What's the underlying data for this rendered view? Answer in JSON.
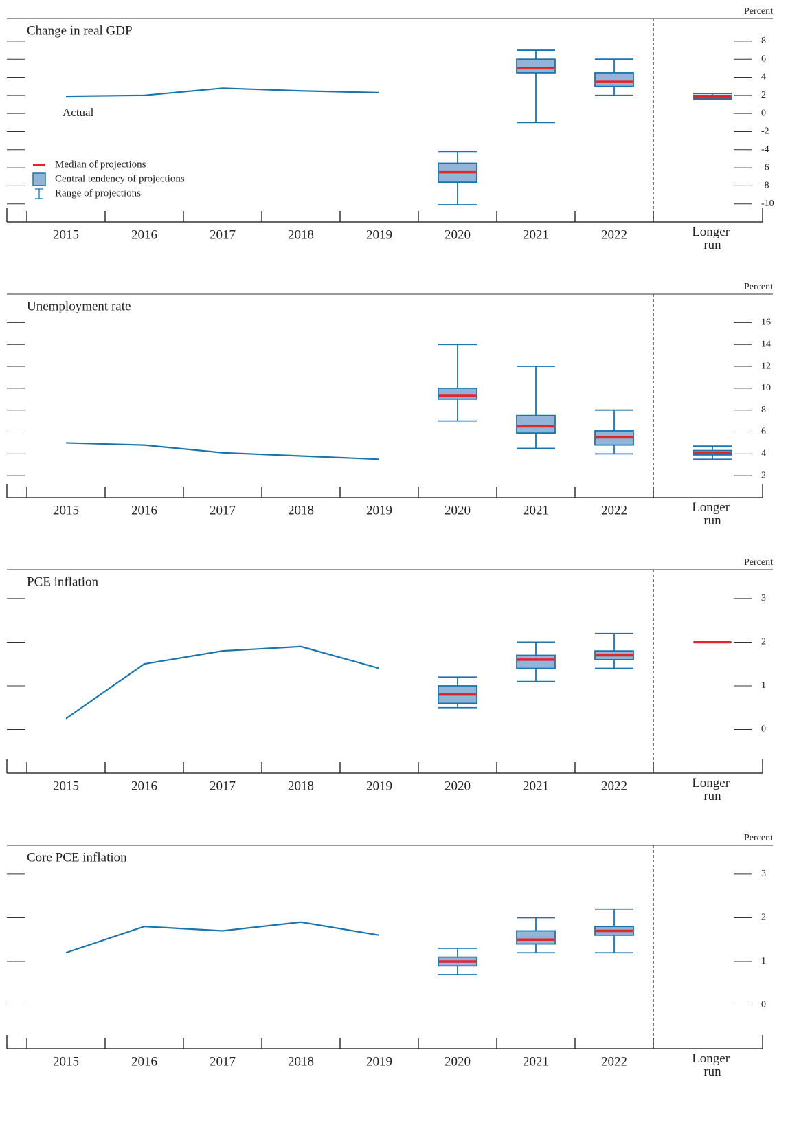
{
  "chart_data": [
    {
      "type": "box",
      "title": "Change in real GDP",
      "y_label": "Percent",
      "annotation": "Actual",
      "legend": {
        "median": "Median of projections",
        "central": "Central tendency of projections",
        "range": "Range of projections"
      },
      "categories": [
        "2015",
        "2016",
        "2017",
        "2018",
        "2019",
        "2020",
        "2021",
        "2022",
        "Longer run"
      ],
      "ylim": [
        -12,
        10.5
      ],
      "yticks": [
        -10,
        -8,
        -6,
        -4,
        -2,
        0,
        2,
        4,
        6,
        8
      ],
      "line_color": "#1b75ad",
      "box_fill": "#92b4d8",
      "median_color": "#e3242b",
      "actual": [
        1.9,
        2.0,
        2.8,
        2.5,
        2.3,
        null,
        null,
        null,
        null
      ],
      "median": [
        null,
        null,
        null,
        null,
        null,
        -6.5,
        5.0,
        3.5,
        1.8
      ],
      "central_low": [
        null,
        null,
        null,
        null,
        null,
        -7.6,
        4.5,
        3.0,
        1.7
      ],
      "central_high": [
        null,
        null,
        null,
        null,
        null,
        -5.5,
        6.0,
        4.5,
        2.0
      ],
      "range_low": [
        null,
        null,
        null,
        null,
        null,
        -10.1,
        -1.0,
        2.0,
        1.6
      ],
      "range_high": [
        null,
        null,
        null,
        null,
        null,
        -4.2,
        7.0,
        6.0,
        2.2
      ]
    },
    {
      "type": "box",
      "title": "Unemployment rate",
      "y_label": "Percent",
      "categories": [
        "2015",
        "2016",
        "2017",
        "2018",
        "2019",
        "2020",
        "2021",
        "2022",
        "Longer run"
      ],
      "ylim": [
        0,
        18.6
      ],
      "yticks": [
        2,
        4,
        6,
        8,
        10,
        12,
        14,
        16
      ],
      "line_color": "#1b75ad",
      "box_fill": "#92b4d8",
      "median_color": "#e3242b",
      "actual": [
        5.0,
        4.8,
        4.1,
        3.8,
        3.5,
        null,
        null,
        null,
        null
      ],
      "median": [
        null,
        null,
        null,
        null,
        null,
        9.3,
        6.5,
        5.5,
        4.1
      ],
      "central_low": [
        null,
        null,
        null,
        null,
        null,
        9.0,
        5.9,
        4.8,
        3.9
      ],
      "central_high": [
        null,
        null,
        null,
        null,
        null,
        10.0,
        7.5,
        6.1,
        4.3
      ],
      "range_low": [
        null,
        null,
        null,
        null,
        null,
        7.0,
        4.5,
        4.0,
        3.5
      ],
      "range_high": [
        null,
        null,
        null,
        null,
        null,
        14.0,
        12.0,
        8.0,
        4.7
      ]
    },
    {
      "type": "box",
      "title": "PCE inflation",
      "y_label": "Percent",
      "categories": [
        "2015",
        "2016",
        "2017",
        "2018",
        "2019",
        "2020",
        "2021",
        "2022",
        "Longer run"
      ],
      "ylim": [
        -1,
        3.66
      ],
      "yticks": [
        0,
        1,
        2,
        3
      ],
      "line_color": "#1b75ad",
      "box_fill": "#92b4d8",
      "median_color": "#e3242b",
      "actual": [
        0.25,
        1.5,
        1.8,
        1.9,
        1.4,
        null,
        null,
        null,
        null
      ],
      "median": [
        null,
        null,
        null,
        null,
        null,
        0.8,
        1.6,
        1.7,
        2.0
      ],
      "central_low": [
        null,
        null,
        null,
        null,
        null,
        0.6,
        1.4,
        1.6,
        2.0
      ],
      "central_high": [
        null,
        null,
        null,
        null,
        null,
        1.0,
        1.7,
        1.8,
        2.0
      ],
      "range_low": [
        null,
        null,
        null,
        null,
        null,
        0.5,
        1.1,
        1.4,
        2.0
      ],
      "range_high": [
        null,
        null,
        null,
        null,
        null,
        1.2,
        2.0,
        2.2,
        2.0
      ]
    },
    {
      "type": "box",
      "title": "Core PCE inflation",
      "y_label": "Percent",
      "categories": [
        "2015",
        "2016",
        "2017",
        "2018",
        "2019",
        "2020",
        "2021",
        "2022",
        "Longer run"
      ],
      "ylim": [
        -1,
        3.66
      ],
      "yticks": [
        0,
        1,
        2,
        3
      ],
      "line_color": "#1b75ad",
      "box_fill": "#92b4d8",
      "median_color": "#e3242b",
      "actual": [
        1.2,
        1.8,
        1.7,
        1.9,
        1.6,
        null,
        null,
        null,
        null
      ],
      "median": [
        null,
        null,
        null,
        null,
        null,
        1.0,
        1.5,
        1.7,
        null
      ],
      "central_low": [
        null,
        null,
        null,
        null,
        null,
        0.9,
        1.4,
        1.6,
        null
      ],
      "central_high": [
        null,
        null,
        null,
        null,
        null,
        1.1,
        1.7,
        1.8,
        null
      ],
      "range_low": [
        null,
        null,
        null,
        null,
        null,
        0.7,
        1.2,
        1.2,
        null
      ],
      "range_high": [
        null,
        null,
        null,
        null,
        null,
        1.3,
        2.0,
        2.2,
        null
      ]
    }
  ]
}
